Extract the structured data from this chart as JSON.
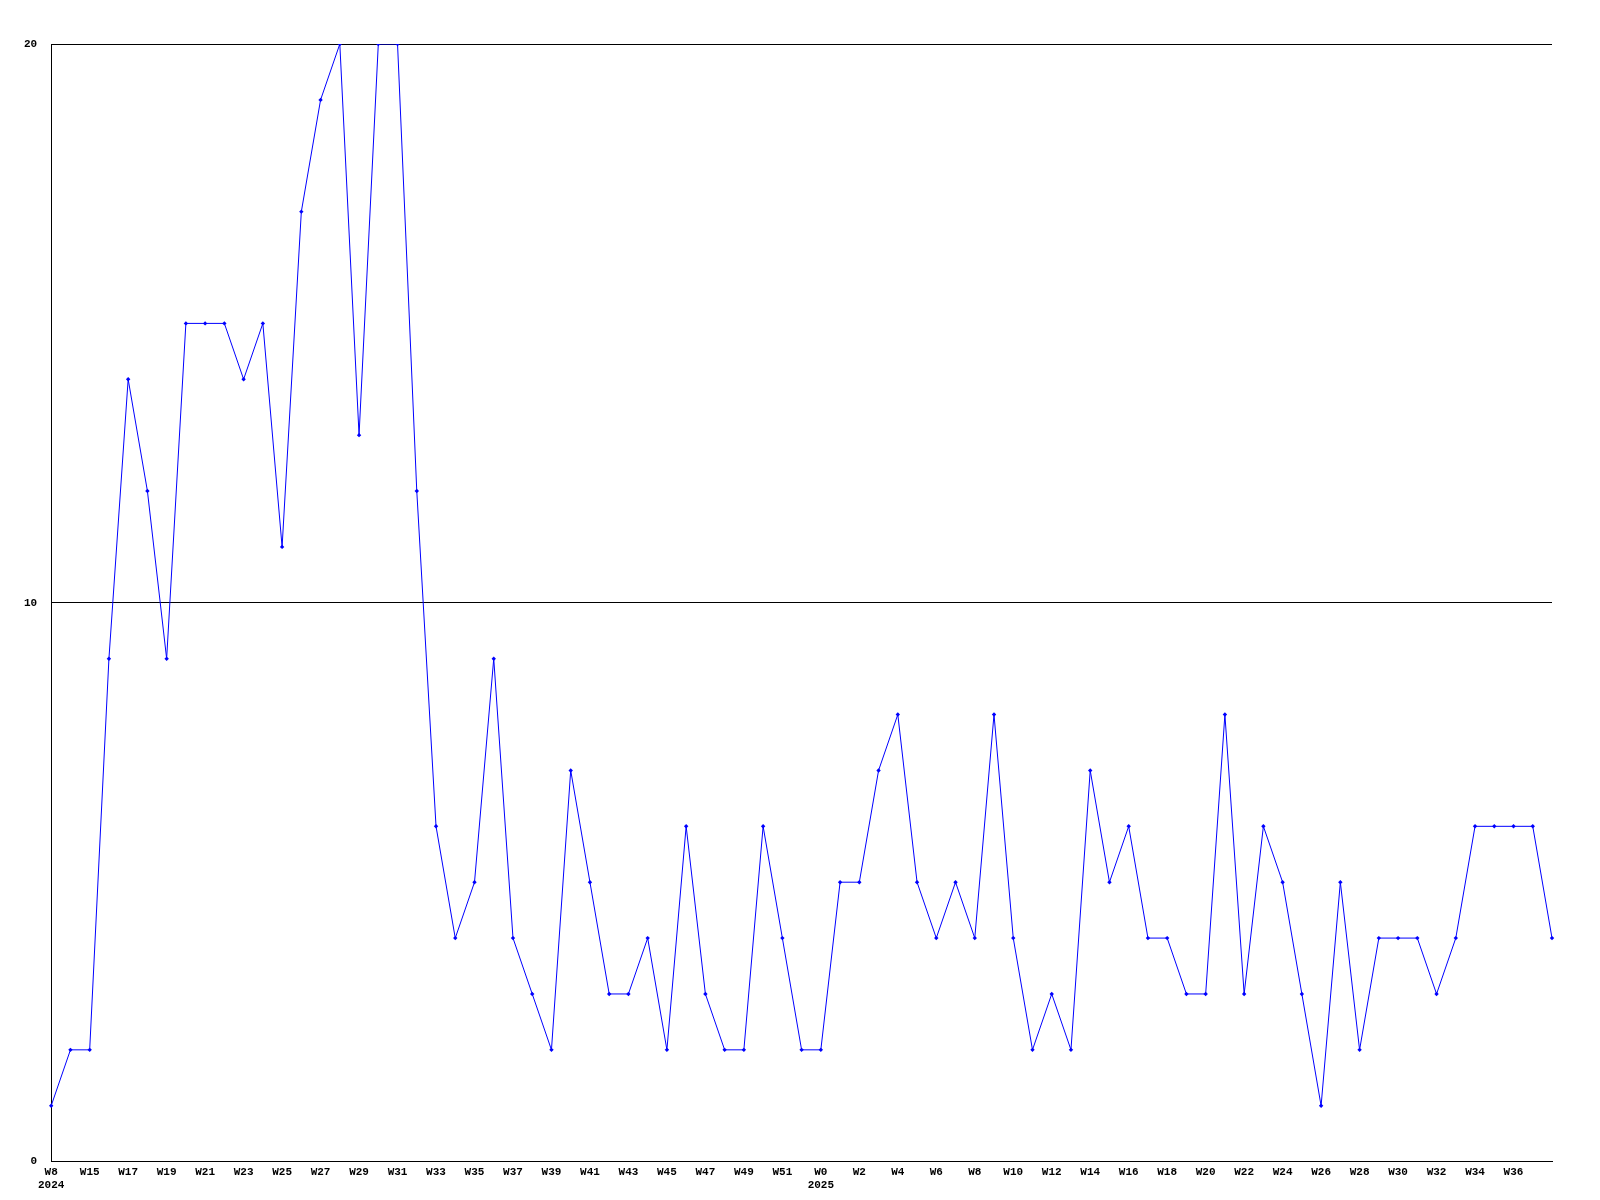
{
  "chart_data": {
    "type": "line",
    "categories": [
      "W8\n2024",
      null,
      "W15",
      null,
      "W17",
      null,
      "W19",
      null,
      "W21",
      null,
      "W23",
      null,
      "W25",
      null,
      "W27",
      null,
      "W29",
      null,
      "W31",
      null,
      "W33",
      null,
      "W35",
      null,
      "W37",
      null,
      "W39",
      null,
      "W41",
      null,
      "W43",
      null,
      "W45",
      null,
      "W47",
      null,
      "W49",
      null,
      "W51",
      null,
      "W0\n2025",
      null,
      "W2",
      null,
      "W4",
      null,
      "W6",
      null,
      "W8",
      null,
      "W10",
      null,
      "W12",
      null,
      "W14",
      null,
      "W16",
      null,
      "W18",
      null,
      "W20",
      null,
      "W22",
      null,
      "W24",
      null,
      "W26",
      null,
      "W28",
      null,
      "W30",
      null,
      "W32",
      null,
      "W34",
      null,
      "W36",
      null,
      null
    ],
    "series": [
      {
        "color": "#0000ff",
        "values": [
          1,
          2,
          2,
          9,
          14,
          12,
          9,
          15,
          15,
          15,
          14,
          15,
          11,
          17,
          19,
          20,
          13,
          20,
          20,
          12,
          6,
          4,
          5,
          9,
          4,
          3,
          2,
          7,
          5,
          3,
          3,
          4,
          2,
          6,
          3,
          2,
          2,
          6,
          4,
          2,
          2,
          5,
          5,
          7,
          8,
          5,
          4,
          5,
          4,
          8,
          4,
          2,
          3,
          2,
          7,
          5,
          6,
          4,
          4,
          3,
          3,
          8,
          3,
          6,
          5,
          3,
          1,
          5,
          2,
          4,
          4,
          4,
          3,
          4,
          6,
          6,
          6,
          6,
          4
        ]
      }
    ],
    "ylim": [
      0,
      20
    ],
    "yticks": [
      0,
      10,
      20
    ],
    "grid": "y",
    "legend": false,
    "marker": "diamond",
    "line_style": "solid"
  }
}
